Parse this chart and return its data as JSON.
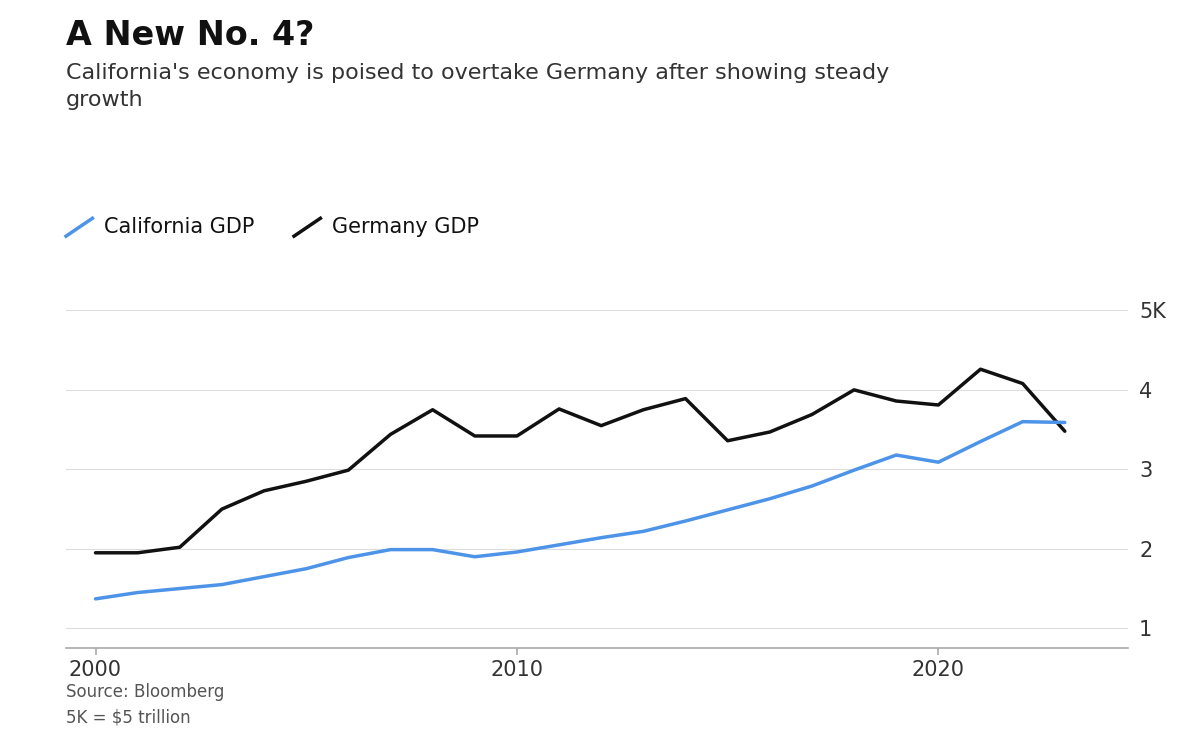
{
  "title": "A New No. 4?",
  "subtitle": "California's economy is poised to overtake Germany after showing steady\ngrowth",
  "california_label": "California GDP",
  "germany_label": "Germany GDP",
  "source_text": "Source: Bloomberg\n5K = $5 trillion",
  "california_color": "#4d94e8",
  "germany_color": "#111111",
  "background_color": "#ffffff",
  "years": [
    2000,
    2001,
    2002,
    2003,
    2004,
    2005,
    2006,
    2007,
    2008,
    2009,
    2010,
    2011,
    2012,
    2013,
    2014,
    2015,
    2016,
    2017,
    2018,
    2019,
    2020,
    2021,
    2022,
    2023
  ],
  "california_gdp": [
    1.37,
    1.45,
    1.5,
    1.55,
    1.65,
    1.75,
    1.89,
    1.99,
    1.99,
    1.9,
    1.96,
    2.05,
    2.14,
    2.22,
    2.35,
    2.49,
    2.63,
    2.79,
    2.99,
    3.18,
    3.09,
    3.35,
    3.6,
    3.59
  ],
  "germany_gdp": [
    1.95,
    1.95,
    2.02,
    2.5,
    2.73,
    2.85,
    2.99,
    3.44,
    3.75,
    3.42,
    3.42,
    3.76,
    3.55,
    3.75,
    3.89,
    3.36,
    3.47,
    3.69,
    4.0,
    3.86,
    3.81,
    4.26,
    4.08,
    3.48
  ],
  "ylim": [
    0.75,
    5.25
  ],
  "yticks": [
    1,
    2,
    3,
    4,
    5
  ],
  "ytick_labels": [
    "1",
    "2",
    "3",
    "4",
    "5K"
  ],
  "xlim": [
    1999.3,
    2024.5
  ],
  "xticks": [
    2000,
    2010,
    2020
  ],
  "title_fontsize": 24,
  "subtitle_fontsize": 16,
  "tick_fontsize": 15,
  "legend_fontsize": 15,
  "source_fontsize": 12,
  "line_width": 2.5
}
